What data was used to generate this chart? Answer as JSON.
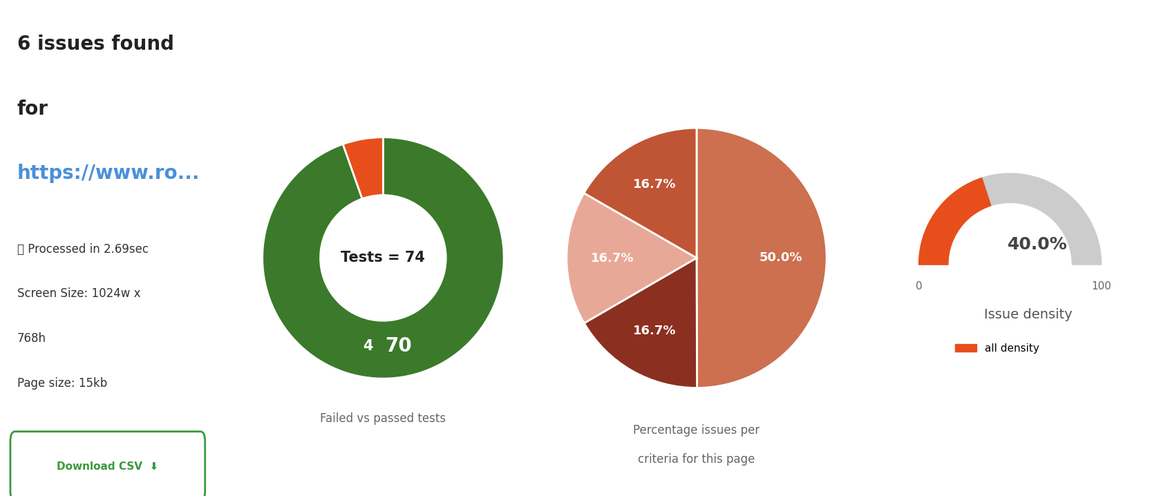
{
  "title_line1": "6 issues found",
  "title_line2": "for",
  "title_url": "https://www.ro...",
  "info_line1": "⏱ Processed in 2.69sec",
  "info_line2": "Screen Size: 1024w x",
  "info_line3": "768h",
  "info_line4": "Page size: 15kb",
  "btn_text": "Download CSV  ⬇",
  "donut_values": [
    70,
    4
  ],
  "donut_colors": [
    "#3a7a2a",
    "#e84e1b"
  ],
  "donut_center_text": "Tests = 74",
  "donut_label_passed": "70",
  "donut_label_failed": "4",
  "donut_subtitle": "Failed vs passed tests",
  "pie_values": [
    50.0,
    16.7,
    16.7,
    16.7
  ],
  "pie_colors": [
    "#cc7050",
    "#8b3020",
    "#e8a898",
    "#c05535"
  ],
  "pie_subtitle_line1": "Percentage issues per",
  "pie_subtitle_line2": "criteria for this page",
  "gauge_value": 40.0,
  "gauge_max": 100,
  "gauge_color": "#e84e1b",
  "gauge_bg_color": "#cccccc",
  "gauge_title": "Issue density",
  "gauge_legend": "all density",
  "background_color": "#ffffff"
}
